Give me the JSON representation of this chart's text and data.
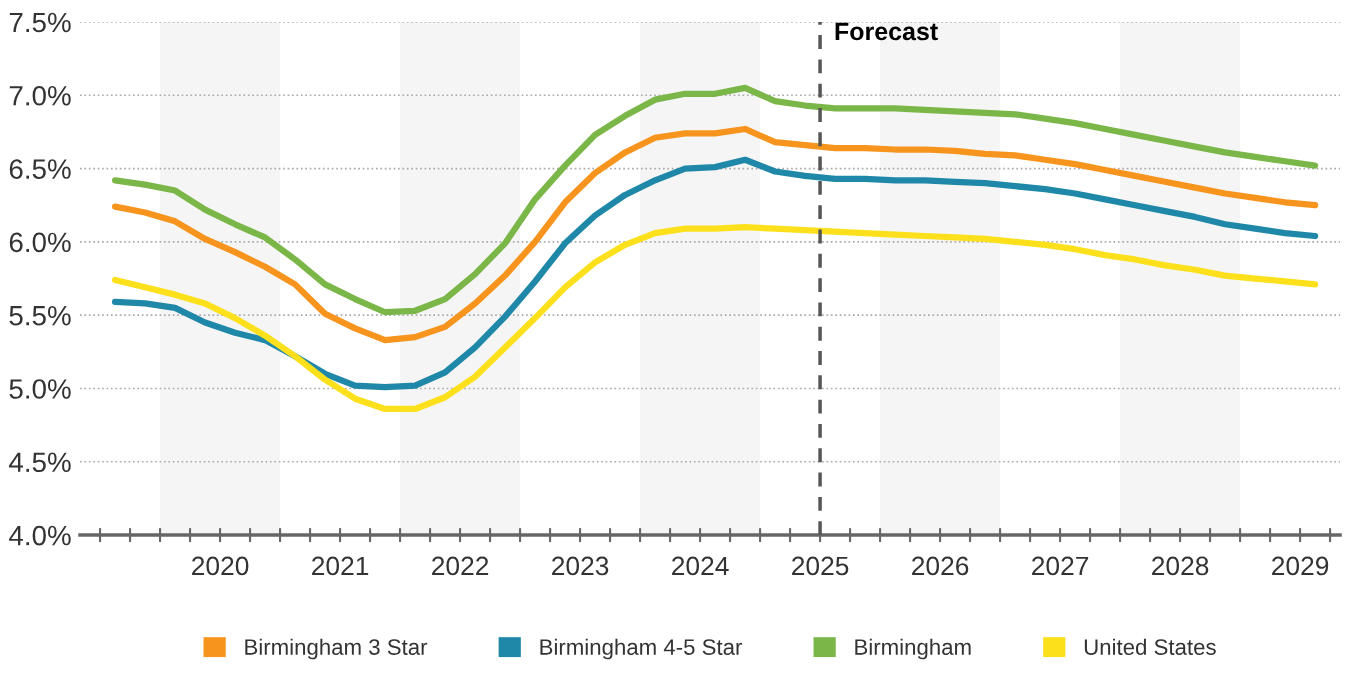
{
  "chart_data": {
    "type": "line",
    "x": [
      2019.625,
      2019.875,
      2020.125,
      2020.375,
      2020.625,
      2020.875,
      2021.125,
      2021.375,
      2021.625,
      2021.875,
      2022.125,
      2022.375,
      2022.625,
      2022.875,
      2023.125,
      2023.375,
      2023.625,
      2023.875,
      2024.125,
      2024.375,
      2024.625,
      2024.875,
      2025.125,
      2025.375,
      2025.625,
      2025.875,
      2026.125,
      2026.375,
      2026.625,
      2026.875,
      2027.125,
      2027.375,
      2027.625,
      2027.875,
      2028.125,
      2028.375,
      2028.625,
      2028.875,
      2029.125,
      2029.375,
      2029.625
    ],
    "series": [
      {
        "name": "Birmingham 3 Star",
        "color": "#f7941d",
        "values": [
          6.24,
          6.2,
          6.14,
          6.02,
          5.93,
          5.83,
          5.71,
          5.51,
          5.41,
          5.33,
          5.35,
          5.42,
          5.58,
          5.77,
          6.0,
          6.27,
          6.47,
          6.61,
          6.71,
          6.74,
          6.74,
          6.77,
          6.68,
          6.66,
          6.64,
          6.64,
          6.63,
          6.63,
          6.62,
          6.6,
          6.59,
          6.56,
          6.53,
          6.49,
          6.45,
          6.41,
          6.37,
          6.33,
          6.3,
          6.27,
          6.25
        ]
      },
      {
        "name": "Birmingham 4-5 Star",
        "color": "#1f88a8",
        "values": [
          5.59,
          5.58,
          5.55,
          5.45,
          5.38,
          5.33,
          5.22,
          5.1,
          5.02,
          5.01,
          5.02,
          5.11,
          5.28,
          5.49,
          5.73,
          5.99,
          6.18,
          6.32,
          6.42,
          6.5,
          6.51,
          6.56,
          6.48,
          6.45,
          6.43,
          6.43,
          6.42,
          6.42,
          6.41,
          6.4,
          6.38,
          6.36,
          6.33,
          6.29,
          6.25,
          6.21,
          6.17,
          6.12,
          6.09,
          6.06,
          6.04
        ]
      },
      {
        "name": "Birmingham",
        "color": "#7ab648",
        "values": [
          6.42,
          6.39,
          6.35,
          6.22,
          6.12,
          6.03,
          5.88,
          5.71,
          5.61,
          5.52,
          5.53,
          5.61,
          5.78,
          5.99,
          6.29,
          6.52,
          6.73,
          6.86,
          6.97,
          7.01,
          7.01,
          7.05,
          6.96,
          6.93,
          6.91,
          6.91,
          6.91,
          6.9,
          6.89,
          6.88,
          6.87,
          6.84,
          6.81,
          6.77,
          6.73,
          6.69,
          6.65,
          6.61,
          6.58,
          6.55,
          6.52
        ]
      },
      {
        "name": "United States",
        "color": "#fce01c",
        "values": [
          5.74,
          5.69,
          5.64,
          5.58,
          5.48,
          5.36,
          5.22,
          5.06,
          4.93,
          4.86,
          4.86,
          4.94,
          5.08,
          5.28,
          5.48,
          5.69,
          5.86,
          5.98,
          6.06,
          6.09,
          6.09,
          6.1,
          6.09,
          6.08,
          6.07,
          6.06,
          6.05,
          6.04,
          6.03,
          6.02,
          6.0,
          5.98,
          5.95,
          5.91,
          5.88,
          5.84,
          5.81,
          5.77,
          5.75,
          5.73,
          5.71
        ]
      }
    ],
    "xlim": [
      2019.333,
      2029.833
    ],
    "xticks": [
      {
        "value": 2019.5,
        "label": null
      },
      {
        "value": 2019.75,
        "label": null
      },
      {
        "value": 2020,
        "label": null
      },
      {
        "value": 2020.25,
        "label": null
      },
      {
        "value": 2020.5,
        "label": "2020"
      },
      {
        "value": 2020.75,
        "label": null
      },
      {
        "value": 2021,
        "label": null
      },
      {
        "value": 2021.25,
        "label": null
      },
      {
        "value": 2021.5,
        "label": "2021"
      },
      {
        "value": 2021.75,
        "label": null
      },
      {
        "value": 2022,
        "label": null
      },
      {
        "value": 2022.25,
        "label": null
      },
      {
        "value": 2022.5,
        "label": "2022"
      },
      {
        "value": 2022.75,
        "label": null
      },
      {
        "value": 2023,
        "label": null
      },
      {
        "value": 2023.25,
        "label": null
      },
      {
        "value": 2023.5,
        "label": "2023"
      },
      {
        "value": 2023.75,
        "label": null
      },
      {
        "value": 2024,
        "label": null
      },
      {
        "value": 2024.25,
        "label": null
      },
      {
        "value": 2024.5,
        "label": "2024"
      },
      {
        "value": 2024.75,
        "label": null
      },
      {
        "value": 2025,
        "label": null
      },
      {
        "value": 2025.25,
        "label": null
      },
      {
        "value": 2025.5,
        "label": "2025"
      },
      {
        "value": 2025.75,
        "label": null
      },
      {
        "value": 2026,
        "label": null
      },
      {
        "value": 2026.25,
        "label": null
      },
      {
        "value": 2026.5,
        "label": "2026"
      },
      {
        "value": 2026.75,
        "label": null
      },
      {
        "value": 2027,
        "label": null
      },
      {
        "value": 2027.25,
        "label": null
      },
      {
        "value": 2027.5,
        "label": "2027"
      },
      {
        "value": 2027.75,
        "label": null
      },
      {
        "value": 2028,
        "label": null
      },
      {
        "value": 2028.25,
        "label": null
      },
      {
        "value": 2028.5,
        "label": "2028"
      },
      {
        "value": 2028.75,
        "label": null
      },
      {
        "value": 2029,
        "label": null
      },
      {
        "value": 2029.25,
        "label": null
      },
      {
        "value": 2029.5,
        "label": "2029"
      },
      {
        "value": 2029.75,
        "label": null
      }
    ],
    "ylim": [
      4.0,
      7.5
    ],
    "yticks": [
      {
        "value": 4.0,
        "label": "4.0%"
      },
      {
        "value": 4.5,
        "label": "4.5%"
      },
      {
        "value": 5.0,
        "label": "5.0%"
      },
      {
        "value": 5.5,
        "label": "5.5%"
      },
      {
        "value": 6.0,
        "label": "6.0%"
      },
      {
        "value": 6.5,
        "label": "6.5%"
      },
      {
        "value": 7.0,
        "label": "7.0%"
      },
      {
        "value": 7.5,
        "label": "7.5%"
      }
    ],
    "grid": "y",
    "legend": "bottom",
    "marker": "none",
    "line_style": "solid",
    "ref_lines": [
      {
        "axis": "x",
        "value": 2025.5,
        "label": "Forecast",
        "color": "#555555",
        "line_style": "dashed"
      }
    ],
    "bands": [
      {
        "axis": "x",
        "from": 2020,
        "to": 2021,
        "color": "#f5f5f5"
      },
      {
        "axis": "x",
        "from": 2022,
        "to": 2023,
        "color": "#f5f5f5"
      },
      {
        "axis": "x",
        "from": 2024,
        "to": 2025,
        "color": "#f5f5f5"
      },
      {
        "axis": "x",
        "from": 2026,
        "to": 2027,
        "color": "#f5f5f5"
      },
      {
        "axis": "x",
        "from": 2028,
        "to": 2029,
        "color": "#f5f5f5"
      }
    ]
  }
}
